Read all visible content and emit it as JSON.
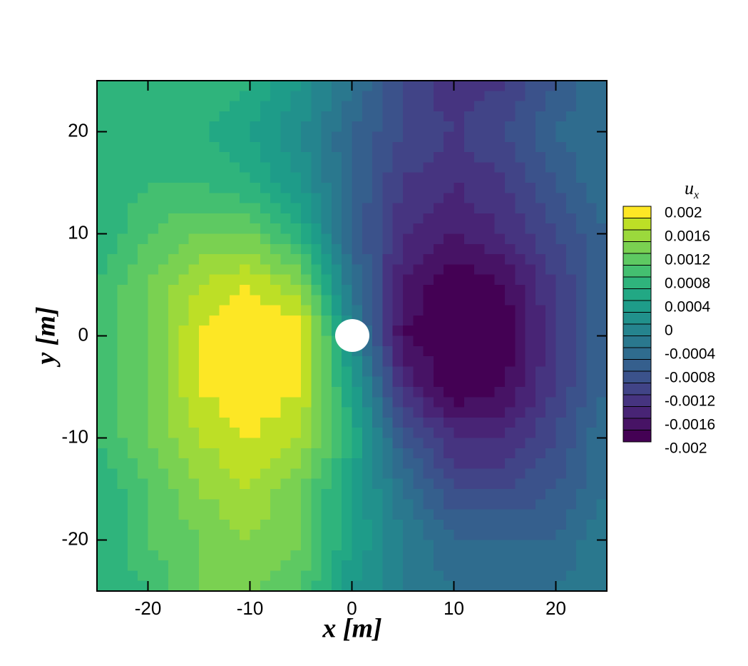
{
  "chart_data": {
    "type": "contour",
    "xlabel": "x [m]",
    "ylabel": "y [m]",
    "xlim": [
      -25,
      25
    ],
    "ylim": [
      -25,
      25
    ],
    "xticks": [
      -20,
      -10,
      0,
      10,
      20
    ],
    "yticks": [
      -20,
      -10,
      0,
      10,
      20
    ],
    "x": [
      -25,
      -20,
      -15,
      -10,
      -5,
      0,
      5,
      10,
      15,
      20,
      25
    ],
    "y": [
      25,
      20,
      15,
      10,
      5,
      0,
      -5,
      -10,
      -15,
      -20,
      -25
    ],
    "z": [
      [
        0.0006,
        0.0006,
        0.0008,
        0.0006,
        0.0002,
        -0.0004,
        -0.001,
        -0.0014,
        -0.0012,
        -0.0008,
        -0.0004
      ],
      [
        0.0006,
        0.0006,
        0.0006,
        0.0004,
        0.0,
        -0.0006,
        -0.001,
        -0.0012,
        -0.001,
        -0.0006,
        -0.0004
      ],
      [
        0.0006,
        0.0008,
        0.0008,
        0.0006,
        0.0002,
        -0.0006,
        -0.0012,
        -0.0014,
        -0.0012,
        -0.0008,
        -0.0004
      ],
      [
        0.0006,
        0.001,
        0.0012,
        0.0012,
        0.0006,
        -0.0006,
        -0.0014,
        -0.0016,
        -0.0014,
        -0.001,
        -0.0006
      ],
      [
        0.0008,
        0.0012,
        0.0016,
        0.0018,
        0.0014,
        -0.0004,
        -0.0016,
        -0.002,
        -0.0018,
        -0.0012,
        -0.0006
      ],
      [
        0.0008,
        0.0012,
        0.0018,
        0.002,
        0.002,
        0.0,
        -0.0018,
        -0.002,
        -0.002,
        -0.0012,
        -0.0006
      ],
      [
        0.0008,
        0.0012,
        0.0018,
        0.002,
        0.0018,
        0.0004,
        -0.0014,
        -0.002,
        -0.0018,
        -0.0012,
        -0.0006
      ],
      [
        0.0008,
        0.0012,
        0.0016,
        0.0018,
        0.0016,
        0.0006,
        -0.0008,
        -0.0014,
        -0.0014,
        -0.001,
        -0.0004
      ],
      [
        0.0006,
        0.001,
        0.0014,
        0.0016,
        0.0012,
        0.0004,
        -0.0004,
        -0.001,
        -0.001,
        -0.0008,
        -0.0004
      ],
      [
        0.0006,
        0.001,
        0.0012,
        0.0014,
        0.0012,
        0.0004,
        -0.0002,
        -0.0006,
        -0.0006,
        -0.0006,
        -0.0002
      ],
      [
        0.0006,
        0.0008,
        0.0012,
        0.0012,
        0.001,
        0.0002,
        -0.0002,
        -0.0004,
        -0.0004,
        -0.0004,
        -0.0002
      ]
    ],
    "colorbar_label": "u",
    "colorbar_label_sub": "x",
    "levels": [
      -0.002,
      -0.0018,
      -0.0016,
      -0.0014,
      -0.0012,
      -0.001,
      -0.0008,
      -0.0006,
      -0.0004,
      -0.0002,
      0,
      0.0002,
      0.0004,
      0.0006,
      0.0008,
      0.001,
      0.0012,
      0.0014,
      0.0016,
      0.0018,
      0.002
    ],
    "colorbar_ticks": [
      0.002,
      0.0016,
      0.0012,
      0.0008,
      0.0004,
      0,
      -0.0004,
      -0.0008,
      -0.0012,
      -0.0016,
      -0.002
    ],
    "colors": [
      "#440154",
      "#471365",
      "#482475",
      "#463480",
      "#414487",
      "#3b528b",
      "#355f8d",
      "#2f6c8e",
      "#2a788e",
      "#25848e",
      "#21918c",
      "#1e9c89",
      "#22a884",
      "#2fb47c",
      "#44bf70",
      "#5ec962",
      "#7ad151",
      "#9bd93c",
      "#bddf26",
      "#fde725"
    ]
  }
}
